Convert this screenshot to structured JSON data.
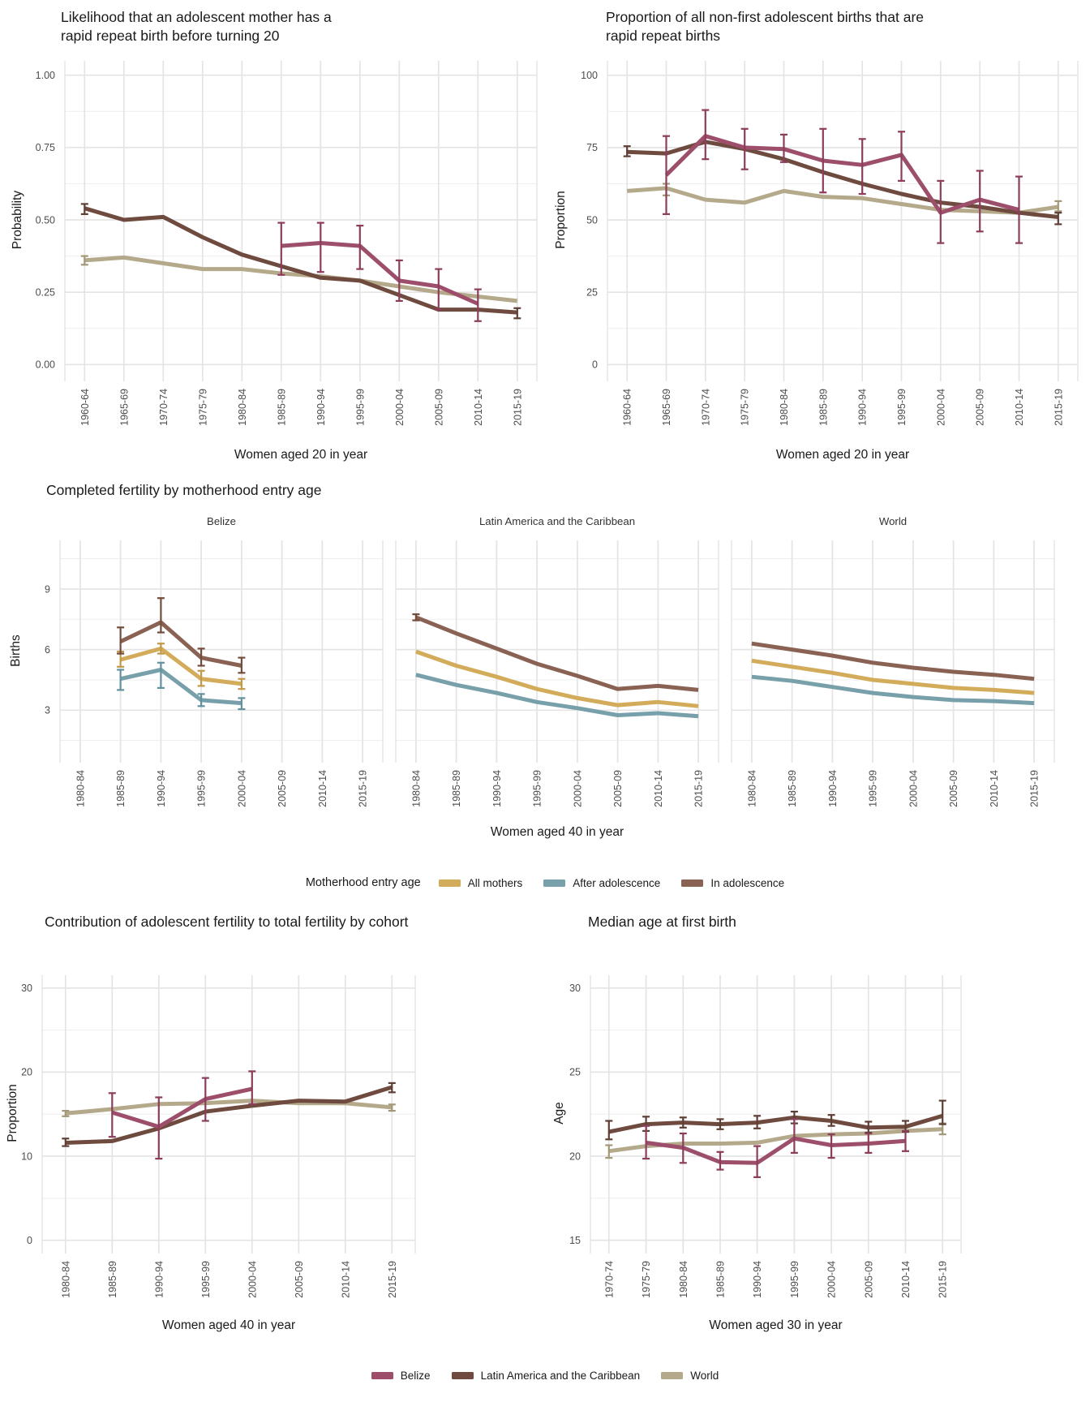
{
  "colors": {
    "belize": {
      "line": "#9D4E6B",
      "err": "#8C3D5C"
    },
    "lac": {
      "line": "#6F4A3E",
      "err": "#5E3F35"
    },
    "world": {
      "line": "#B4AA8B",
      "err": "#A39877"
    },
    "all_mothers": {
      "line": "#D3AC5B",
      "err": "#C2984A"
    },
    "after_adolescence": {
      "line": "#78A0AA",
      "err": "#61929E"
    },
    "in_adolescence": {
      "line": "#8A6253",
      "err": "#724C3D"
    },
    "grid_major": "#E4E4E4",
    "grid_minor": "#EFEFEF",
    "tick_label": "#4D4D4D",
    "text": "#1A1A1A",
    "background": "#FFFFFF"
  },
  "legend_bottom": {
    "items": [
      {
        "label": "Belize",
        "color_key": "belize"
      },
      {
        "label": "Latin America and the Caribbean",
        "color_key": "lac"
      },
      {
        "label": "World",
        "color_key": "world"
      }
    ]
  },
  "chart_data": [
    {
      "id": "rrb_likelihood",
      "type": "line",
      "title": "Likelihood that an adolescent mother has a\nrapid repeat birth before turning 20",
      "xlabel": "Women aged 20 in year",
      "ylabel": "Probability",
      "grid": true,
      "ylim": [
        0,
        1
      ],
      "yticks": [
        0,
        0.25,
        0.5,
        0.75,
        1.0
      ],
      "ytick_labels": [
        "0.00",
        "0.25",
        "0.50",
        "0.75",
        "1.00"
      ],
      "yminors": [
        0.125,
        0.375,
        0.625,
        0.875
      ],
      "categories": [
        "1960-64",
        "1965-69",
        "1970-74",
        "1975-79",
        "1980-84",
        "1985-89",
        "1990-94",
        "1995-99",
        "2000-04",
        "2005-09",
        "2010-14",
        "2015-19"
      ],
      "series": [
        {
          "name": "World",
          "color_key": "world",
          "start_index": 0,
          "values": [
            0.36,
            0.37,
            0.35,
            0.33,
            0.33,
            0.315,
            0.305,
            0.29,
            0.27,
            0.25,
            0.235,
            0.22
          ],
          "err_low": [
            0.345,
            null,
            null,
            null,
            null,
            null,
            null,
            null,
            null,
            null,
            null,
            null
          ],
          "err_high": [
            0.375,
            null,
            null,
            null,
            null,
            null,
            null,
            null,
            null,
            null,
            null,
            null
          ]
        },
        {
          "name": "Latin America and the Caribbean",
          "color_key": "lac",
          "start_index": 0,
          "values": [
            0.54,
            0.5,
            0.51,
            0.44,
            0.38,
            0.34,
            0.3,
            0.29,
            0.24,
            0.19,
            0.19,
            0.18
          ],
          "err_low": [
            0.52,
            null,
            null,
            null,
            null,
            null,
            null,
            null,
            null,
            null,
            null,
            0.16
          ],
          "err_high": [
            0.555,
            null,
            null,
            null,
            null,
            null,
            null,
            null,
            null,
            null,
            null,
            0.195
          ]
        },
        {
          "name": "Belize",
          "color_key": "belize",
          "start_index": 5,
          "values": [
            0.41,
            0.42,
            0.41,
            0.29,
            0.27,
            0.21
          ],
          "err_low": [
            0.31,
            0.32,
            0.33,
            0.22,
            0.19,
            0.15
          ],
          "err_high": [
            0.49,
            0.49,
            0.48,
            0.36,
            0.33,
            0.26
          ]
        }
      ]
    },
    {
      "id": "rrb_proportion",
      "type": "line",
      "title": "Proportion of all non-first adolescent births that are\nrapid repeat births",
      "xlabel": "Women aged 20 in year",
      "ylabel": "Proportion",
      "grid": true,
      "ylim": [
        0,
        100
      ],
      "yticks": [
        0,
        25,
        50,
        75,
        100
      ],
      "ytick_labels": [
        "0",
        "25",
        "50",
        "75",
        "100"
      ],
      "yminors": [
        12.5,
        37.5,
        62.5,
        87.5
      ],
      "categories": [
        "1960-64",
        "1965-69",
        "1970-74",
        "1975-79",
        "1980-84",
        "1985-89",
        "1990-94",
        "1995-99",
        "2000-04",
        "2005-09",
        "2010-14",
        "2015-19"
      ],
      "series": [
        {
          "name": "World",
          "color_key": "world",
          "start_index": 0,
          "values": [
            60,
            61,
            57,
            56,
            60,
            58,
            57.5,
            55.5,
            53.5,
            53,
            52.5,
            54.5
          ],
          "err_low": [
            null,
            58.5,
            null,
            null,
            null,
            null,
            null,
            null,
            null,
            null,
            null,
            53
          ],
          "err_high": [
            null,
            62.5,
            null,
            null,
            null,
            null,
            null,
            null,
            null,
            null,
            null,
            56.5
          ]
        },
        {
          "name": "Latin America and the Caribbean",
          "color_key": "lac",
          "start_index": 0,
          "values": [
            73.5,
            73,
            77,
            74.5,
            71,
            66.5,
            62.5,
            59,
            56,
            54.5,
            52.5,
            51
          ],
          "err_low": [
            72,
            null,
            null,
            null,
            null,
            null,
            null,
            null,
            null,
            null,
            null,
            48.5
          ],
          "err_high": [
            75.5,
            null,
            null,
            null,
            null,
            null,
            null,
            null,
            null,
            null,
            null,
            52.5
          ]
        },
        {
          "name": "Belize",
          "color_key": "belize",
          "start_index": 1,
          "values": [
            65.5,
            79,
            75,
            74.5,
            70.5,
            69,
            72.5,
            52.5,
            57,
            53.5
          ],
          "err_low": [
            52,
            71,
            67.5,
            70,
            59.5,
            59,
            63.5,
            42,
            46,
            42
          ],
          "err_high": [
            79,
            88,
            81.5,
            79.5,
            81.5,
            78,
            80.5,
            63.5,
            67,
            65
          ]
        }
      ]
    },
    {
      "id": "completed_fertility",
      "type": "line",
      "title": "Completed fertility by motherhood entry age",
      "xlabel": "Women aged 40 in year",
      "ylabel": "Births",
      "grid": true,
      "ylim": [
        0,
        11
      ],
      "yticks": [
        3,
        6,
        9
      ],
      "ytick_labels": [
        "3",
        "6",
        "9"
      ],
      "yminors": [
        1.5,
        4.5,
        7.5,
        10.5
      ],
      "categories": [
        "1980-84",
        "1985-89",
        "1990-94",
        "1995-99",
        "2000-04",
        "2005-09",
        "2010-14",
        "2015-19"
      ],
      "legend": {
        "title": "Motherhood entry age",
        "items": [
          {
            "label": "All mothers",
            "color_key": "all_mothers"
          },
          {
            "label": "After adolescence",
            "color_key": "after_adolescence"
          },
          {
            "label": "In adolescence",
            "color_key": "in_adolescence"
          }
        ]
      },
      "facets": [
        {
          "name": "Belize",
          "series": [
            {
              "name": "After adolescence",
              "color_key": "after_adolescence",
              "start_index": 1,
              "values": [
                4.55,
                5.0,
                3.5,
                3.35
              ],
              "err_low": [
                4.0,
                4.1,
                3.2,
                3.05
              ],
              "err_high": [
                5.0,
                5.35,
                3.8,
                3.6
              ]
            },
            {
              "name": "All mothers",
              "color_key": "all_mothers",
              "start_index": 1,
              "values": [
                5.5,
                6.05,
                4.55,
                4.3
              ],
              "err_low": [
                5.15,
                5.8,
                4.2,
                4.05
              ],
              "err_high": [
                5.9,
                6.3,
                4.95,
                4.55
              ]
            },
            {
              "name": "In adolescence",
              "color_key": "in_adolescence",
              "start_index": 1,
              "values": [
                6.4,
                7.35,
                5.6,
                5.2
              ],
              "err_low": [
                5.8,
                6.85,
                5.2,
                4.85
              ],
              "err_high": [
                7.1,
                8.55,
                6.05,
                5.6
              ]
            }
          ]
        },
        {
          "name": "Latin America and the Caribbean",
          "series": [
            {
              "name": "After adolescence",
              "color_key": "after_adolescence",
              "start_index": 0,
              "values": [
                4.75,
                4.25,
                3.85,
                3.4,
                3.1,
                2.75,
                2.85,
                2.7
              ]
            },
            {
              "name": "All mothers",
              "color_key": "all_mothers",
              "start_index": 0,
              "values": [
                5.9,
                5.2,
                4.65,
                4.05,
                3.6,
                3.25,
                3.4,
                3.2
              ]
            },
            {
              "name": "In adolescence",
              "color_key": "in_adolescence",
              "start_index": 0,
              "values": [
                7.6,
                6.8,
                6.05,
                5.3,
                4.7,
                4.05,
                4.2,
                4.0
              ],
              "err_low": [
                7.45,
                null,
                null,
                null,
                null,
                null,
                null,
                null
              ],
              "err_high": [
                7.75,
                null,
                null,
                null,
                null,
                null,
                null,
                null
              ]
            }
          ]
        },
        {
          "name": "World",
          "series": [
            {
              "name": "After adolescence",
              "color_key": "after_adolescence",
              "start_index": 0,
              "values": [
                4.65,
                4.45,
                4.15,
                3.85,
                3.65,
                3.5,
                3.45,
                3.35
              ]
            },
            {
              "name": "All mothers",
              "color_key": "all_mothers",
              "start_index": 0,
              "values": [
                5.45,
                5.15,
                4.85,
                4.5,
                4.3,
                4.1,
                4.0,
                3.85
              ]
            },
            {
              "name": "In adolescence",
              "color_key": "in_adolescence",
              "start_index": 0,
              "values": [
                6.3,
                6.0,
                5.7,
                5.35,
                5.1,
                4.9,
                4.75,
                4.55
              ]
            }
          ]
        }
      ]
    },
    {
      "id": "adolescent_contribution",
      "type": "line",
      "title": "Contribution of adolescent fertility to total fertility by cohort",
      "xlabel": "Women aged 40 in year",
      "ylabel": "Proportion",
      "grid": true,
      "ylim": [
        0,
        30
      ],
      "yticks": [
        0,
        10,
        20,
        30
      ],
      "ytick_labels": [
        "0",
        "10",
        "20",
        "30"
      ],
      "yminors": [
        5,
        15,
        25
      ],
      "categories": [
        "1980-84",
        "1985-89",
        "1990-94",
        "1995-99",
        "2000-04",
        "2005-09",
        "2010-14",
        "2015-19"
      ],
      "series": [
        {
          "name": "World",
          "color_key": "world",
          "start_index": 0,
          "values": [
            15.1,
            15.6,
            16.2,
            16.3,
            16.6,
            16.3,
            16.3,
            15.8
          ],
          "err_low": [
            14.75,
            null,
            null,
            null,
            null,
            null,
            null,
            15.4
          ],
          "err_high": [
            15.4,
            null,
            null,
            null,
            null,
            null,
            null,
            16.15
          ]
        },
        {
          "name": "Latin America and the Caribbean",
          "color_key": "lac",
          "start_index": 0,
          "values": [
            11.6,
            11.8,
            13.3,
            15.3,
            16.0,
            16.6,
            16.5,
            18.2
          ],
          "err_low": [
            11.2,
            null,
            null,
            null,
            null,
            null,
            null,
            17.6
          ],
          "err_high": [
            12.1,
            null,
            null,
            null,
            null,
            null,
            null,
            18.7
          ]
        },
        {
          "name": "Belize",
          "color_key": "belize",
          "start_index": 1,
          "values": [
            15.2,
            13.5,
            16.8,
            18.0
          ],
          "err_low": [
            12.3,
            9.7,
            14.2,
            16.2
          ],
          "err_high": [
            17.5,
            17.0,
            19.3,
            20.1
          ]
        }
      ]
    },
    {
      "id": "median_age_first_birth",
      "type": "line",
      "title": "Median age at first birth",
      "xlabel": "Women aged 30 in year",
      "ylabel": "Age",
      "grid": true,
      "ylim": [
        15,
        30
      ],
      "yticks": [
        15,
        20,
        25,
        30
      ],
      "ytick_labels": [
        "15",
        "20",
        "25",
        "30"
      ],
      "yminors": [
        17.5,
        22.5,
        27.5
      ],
      "categories": [
        "1970-74",
        "1975-79",
        "1980-84",
        "1985-89",
        "1990-94",
        "1995-99",
        "2000-04",
        "2005-09",
        "2010-14",
        "2015-19"
      ],
      "series": [
        {
          "name": "World",
          "color_key": "world",
          "start_index": 0,
          "values": [
            20.3,
            20.6,
            20.75,
            20.75,
            20.8,
            21.2,
            21.3,
            21.35,
            21.5,
            21.6
          ],
          "err_low": [
            19.9,
            null,
            null,
            null,
            null,
            null,
            null,
            null,
            null,
            21.3
          ],
          "err_high": [
            20.65,
            null,
            null,
            null,
            null,
            null,
            null,
            null,
            null,
            21.95
          ]
        },
        {
          "name": "Latin America and the Caribbean",
          "color_key": "lac",
          "start_index": 0,
          "values": [
            21.45,
            21.9,
            22.0,
            21.9,
            22.0,
            22.3,
            22.1,
            21.7,
            21.75,
            22.4
          ],
          "err_low": [
            21.0,
            21.5,
            21.7,
            21.6,
            21.65,
            21.95,
            21.8,
            21.4,
            21.45,
            21.9
          ],
          "err_high": [
            22.1,
            22.35,
            22.3,
            22.2,
            22.4,
            22.65,
            22.45,
            22.05,
            22.1,
            23.3
          ]
        },
        {
          "name": "Belize",
          "color_key": "belize",
          "start_index": 1,
          "values": [
            20.8,
            20.5,
            19.65,
            19.6,
            21.05,
            20.65,
            20.75,
            20.9
          ],
          "err_low": [
            19.85,
            19.6,
            19.2,
            18.75,
            20.2,
            19.9,
            20.2,
            20.3
          ],
          "err_high": [
            21.8,
            21.35,
            20.25,
            20.6,
            22.2,
            21.3,
            21.35,
            21.5
          ]
        }
      ]
    }
  ]
}
